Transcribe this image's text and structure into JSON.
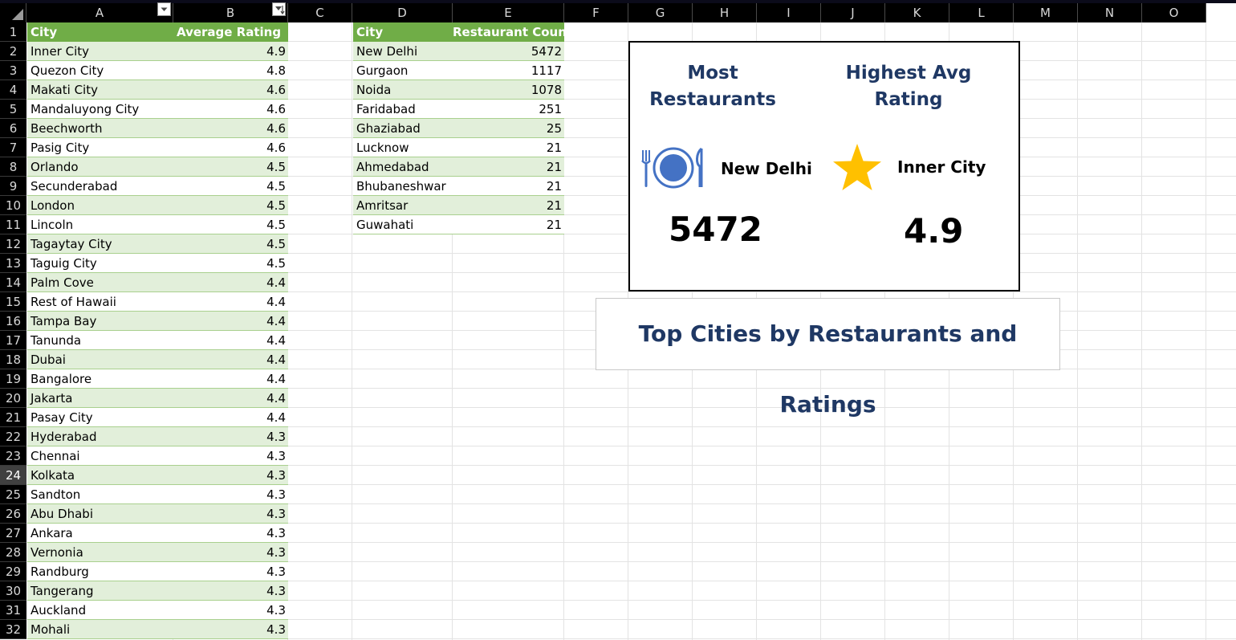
{
  "columns": [
    "A",
    "B",
    "C",
    "D",
    "E",
    "F",
    "G",
    "H",
    "I",
    "J",
    "K",
    "L",
    "M",
    "N",
    "O"
  ],
  "rows": [
    "1",
    "2",
    "3",
    "4",
    "5",
    "6",
    "7",
    "8",
    "9",
    "10",
    "11",
    "12",
    "13",
    "14",
    "15",
    "16",
    "17",
    "18",
    "19",
    "20",
    "21",
    "22",
    "23",
    "24",
    "25",
    "26",
    "27",
    "28",
    "29",
    "30",
    "31",
    "32"
  ],
  "active_row": "24",
  "rating_table": {
    "headers": {
      "city": "City",
      "rating": "Average Rating"
    },
    "rows": [
      {
        "city": "Inner City",
        "rating": "4.9"
      },
      {
        "city": "Quezon City",
        "rating": "4.8"
      },
      {
        "city": "Makati City",
        "rating": "4.6"
      },
      {
        "city": "Mandaluyong City",
        "rating": "4.6"
      },
      {
        "city": "Beechworth",
        "rating": "4.6"
      },
      {
        "city": "Pasig City",
        "rating": "4.6"
      },
      {
        "city": "Orlando",
        "rating": "4.5"
      },
      {
        "city": "Secunderabad",
        "rating": "4.5"
      },
      {
        "city": "London",
        "rating": "4.5"
      },
      {
        "city": "Lincoln",
        "rating": "4.5"
      },
      {
        "city": "Tagaytay City",
        "rating": "4.5"
      },
      {
        "city": "Taguig City",
        "rating": "4.5"
      },
      {
        "city": "Palm Cove",
        "rating": "4.4"
      },
      {
        "city": "Rest of Hawaii",
        "rating": "4.4"
      },
      {
        "city": "Tampa Bay",
        "rating": "4.4"
      },
      {
        "city": "Tanunda",
        "rating": "4.4"
      },
      {
        "city": "Dubai",
        "rating": "4.4"
      },
      {
        "city": "Bangalore",
        "rating": "4.4"
      },
      {
        "city": "Jakarta",
        "rating": "4.4"
      },
      {
        "city": "Pasay City",
        "rating": "4.4"
      },
      {
        "city": "Hyderabad",
        "rating": "4.3"
      },
      {
        "city": "Chennai",
        "rating": "4.3"
      },
      {
        "city": "Kolkata",
        "rating": "4.3"
      },
      {
        "city": "Sandton",
        "rating": "4.3"
      },
      {
        "city": "Abu Dhabi",
        "rating": "4.3"
      },
      {
        "city": "Ankara",
        "rating": "4.3"
      },
      {
        "city": "Vernonia",
        "rating": "4.3"
      },
      {
        "city": "Randburg",
        "rating": "4.3"
      },
      {
        "city": "Tangerang",
        "rating": "4.3"
      },
      {
        "city": "Auckland",
        "rating": "4.3"
      },
      {
        "city": "Mohali",
        "rating": "4.3"
      }
    ]
  },
  "count_table": {
    "headers": {
      "city": "City",
      "count": "Restaurant Count"
    },
    "rows": [
      {
        "city": "New Delhi",
        "count": "5472"
      },
      {
        "city": "Gurgaon",
        "count": "1117"
      },
      {
        "city": "Noida",
        "count": "1078"
      },
      {
        "city": "Faridabad",
        "count": "251"
      },
      {
        "city": "Ghaziabad",
        "count": "25"
      },
      {
        "city": "Lucknow",
        "count": "21"
      },
      {
        "city": "Ahmedabad",
        "count": "21"
      },
      {
        "city": "Bhubaneshwar",
        "count": "21"
      },
      {
        "city": "Amritsar",
        "count": "21"
      },
      {
        "city": "Guwahati",
        "count": "21"
      }
    ]
  },
  "kpi": {
    "most": {
      "title": "Most\nRestaurants",
      "city": "New Delhi",
      "value": "5472",
      "icon": "plate-cutlery-icon"
    },
    "highest": {
      "title": "Highest Avg\nRating",
      "city": "Inner City",
      "value": "4.9",
      "icon": "star-icon"
    }
  },
  "dashboard_title": "Top Cities by Restaurants and Ratings",
  "colors": {
    "header_green": "#70ad47",
    "band_green": "#e2efda",
    "title_navy": "#1f3864",
    "icon_blue": "#4472c4",
    "star_gold": "#ffc000"
  }
}
